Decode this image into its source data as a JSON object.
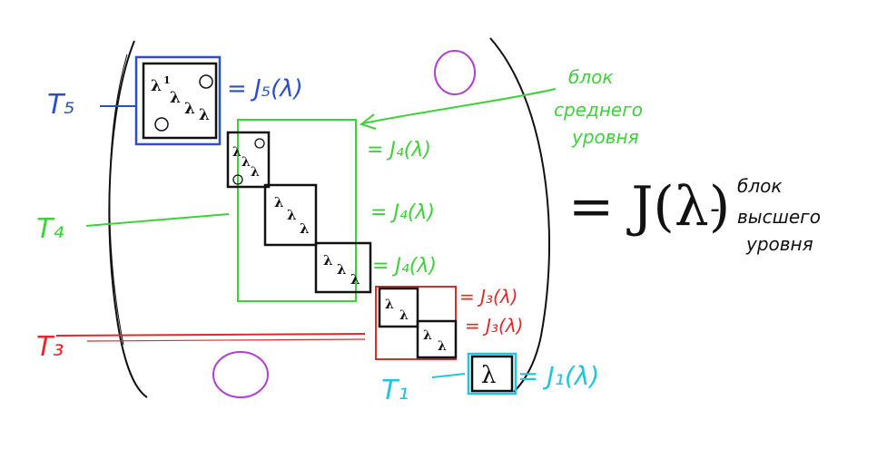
{
  "levels": {
    "t5": "T₅",
    "t4": "T₄",
    "t3": "T₃",
    "t1": "T₁"
  },
  "formulas": {
    "j5": "= J₅(λ)",
    "j4_a": "= J₄(λ)",
    "j4_b": "= J₄(λ)",
    "j4_c": "= J₄(λ)",
    "j3_a": "= J₃(λ)",
    "j3_b": "= J₃(λ)",
    "j1": "= J₁(λ)",
    "big": "= J(λ)"
  },
  "notes": {
    "mid_line1": "блок",
    "mid_line2": "среднего",
    "mid_line3": "уровня",
    "high_dash": "-",
    "high_line1": "блок",
    "high_line2": "высшего",
    "high_line3": "уровня"
  },
  "symbols": {
    "lambda": "λ",
    "ones": "1"
  },
  "colors": {
    "blue": "#2a4fc9",
    "green": "#3fd13a",
    "red": "#e02a2a",
    "orange": "#e06a10",
    "cyan": "#22c4e0",
    "purple": "#b040d0",
    "black": "#111111"
  }
}
